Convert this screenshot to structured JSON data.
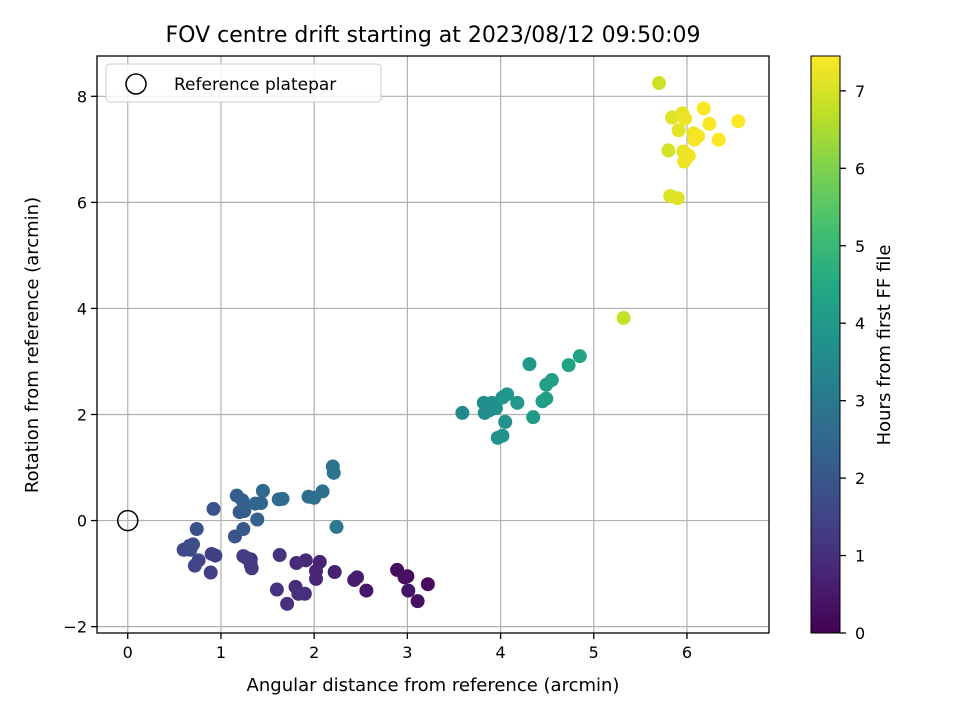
{
  "chart_data": {
    "type": "scatter",
    "title": "FOV centre drift starting at 2023/08/12 09:50:09",
    "xlabel": "Angular distance from reference (arcmin)",
    "ylabel": "Rotation from reference (arcmin)",
    "colorbar_label": "Hours from first FF file",
    "xlim": [
      -0.33,
      6.88
    ],
    "ylim": [
      -2.12,
      8.76
    ],
    "xticks": [
      0,
      1,
      2,
      3,
      4,
      5,
      6
    ],
    "yticks": [
      -2,
      0,
      2,
      4,
      6,
      8
    ],
    "colorbar_ticks": [
      0,
      1,
      2,
      3,
      4,
      5,
      6,
      7
    ],
    "colorbar_range": [
      0,
      7.45
    ],
    "colormap": "viridis",
    "grid": true,
    "legend": {
      "placement": "top-left",
      "entries": [
        "Reference platepar"
      ]
    },
    "reference_point": {
      "x": 0,
      "y": 0,
      "label": "Reference platepar"
    },
    "points": [
      {
        "x": 3.0,
        "y": -1.05,
        "h": 0.15
      },
      {
        "x": 3.22,
        "y": -1.2,
        "h": 0.2
      },
      {
        "x": 2.89,
        "y": -0.93,
        "h": 0.25
      },
      {
        "x": 2.97,
        "y": -1.07,
        "h": 0.3
      },
      {
        "x": 3.11,
        "y": -1.52,
        "h": 0.35
      },
      {
        "x": 3.01,
        "y": -1.32,
        "h": 0.4
      },
      {
        "x": 2.56,
        "y": -1.32,
        "h": 0.5
      },
      {
        "x": 2.43,
        "y": -1.12,
        "h": 0.55
      },
      {
        "x": 2.46,
        "y": -1.07,
        "h": 0.6
      },
      {
        "x": 2.22,
        "y": -0.97,
        "h": 0.65
      },
      {
        "x": 2.06,
        "y": -0.78,
        "h": 0.7
      },
      {
        "x": 2.02,
        "y": -0.95,
        "h": 0.75
      },
      {
        "x": 2.02,
        "y": -1.1,
        "h": 0.8
      },
      {
        "x": 1.91,
        "y": -0.75,
        "h": 0.85
      },
      {
        "x": 1.81,
        "y": -0.8,
        "h": 0.9
      },
      {
        "x": 1.8,
        "y": -1.25,
        "h": 0.95
      },
      {
        "x": 1.83,
        "y": -1.38,
        "h": 1.0
      },
      {
        "x": 1.9,
        "y": -1.38,
        "h": 1.0
      },
      {
        "x": 1.71,
        "y": -1.57,
        "h": 1.05
      },
      {
        "x": 1.6,
        "y": -1.3,
        "h": 1.1
      },
      {
        "x": 1.63,
        "y": -0.65,
        "h": 1.1
      },
      {
        "x": 1.32,
        "y": -0.73,
        "h": 1.15
      },
      {
        "x": 1.33,
        "y": -0.9,
        "h": 1.2
      },
      {
        "x": 1.32,
        "y": -0.83,
        "h": 1.2
      },
      {
        "x": 1.24,
        "y": -0.67,
        "h": 1.25
      },
      {
        "x": 1.27,
        "y": -0.7,
        "h": 1.3
      },
      {
        "x": 0.94,
        "y": -0.66,
        "h": 1.35
      },
      {
        "x": 0.9,
        "y": -0.63,
        "h": 1.4
      },
      {
        "x": 0.89,
        "y": -0.98,
        "h": 1.45
      },
      {
        "x": 0.72,
        "y": -0.85,
        "h": 1.5
      },
      {
        "x": 0.76,
        "y": -0.75,
        "h": 1.55
      },
      {
        "x": 0.6,
        "y": -0.55,
        "h": 1.6
      },
      {
        "x": 0.67,
        "y": -0.55,
        "h": 1.65
      },
      {
        "x": 0.7,
        "y": -0.45,
        "h": 1.7
      },
      {
        "x": 0.66,
        "y": -0.48,
        "h": 1.75
      },
      {
        "x": 0.74,
        "y": -0.16,
        "h": 1.85
      },
      {
        "x": 0.92,
        "y": 0.22,
        "h": 1.95
      },
      {
        "x": 1.15,
        "y": -0.3,
        "h": 2.0
      },
      {
        "x": 1.24,
        "y": -0.16,
        "h": 2.05
      },
      {
        "x": 1.2,
        "y": 0.16,
        "h": 2.1
      },
      {
        "x": 1.25,
        "y": 0.18,
        "h": 2.15
      },
      {
        "x": 1.17,
        "y": 0.47,
        "h": 2.2
      },
      {
        "x": 1.23,
        "y": 0.38,
        "h": 2.25
      },
      {
        "x": 1.25,
        "y": 0.3,
        "h": 2.3
      },
      {
        "x": 1.39,
        "y": 0.02,
        "h": 2.35
      },
      {
        "x": 1.37,
        "y": 0.32,
        "h": 2.4
      },
      {
        "x": 1.43,
        "y": 0.33,
        "h": 2.45
      },
      {
        "x": 1.45,
        "y": 0.56,
        "h": 2.5
      },
      {
        "x": 1.62,
        "y": 0.4,
        "h": 2.55
      },
      {
        "x": 1.66,
        "y": 0.41,
        "h": 2.6
      },
      {
        "x": 1.94,
        "y": 0.45,
        "h": 2.65
      },
      {
        "x": 2.0,
        "y": 0.43,
        "h": 2.7
      },
      {
        "x": 2.09,
        "y": 0.55,
        "h": 2.75
      },
      {
        "x": 2.2,
        "y": 1.02,
        "h": 2.85
      },
      {
        "x": 2.21,
        "y": 0.9,
        "h": 2.9
      },
      {
        "x": 2.24,
        "y": -0.12,
        "h": 3.0
      },
      {
        "x": 3.59,
        "y": 2.03,
        "h": 3.5
      },
      {
        "x": 3.82,
        "y": 2.22,
        "h": 3.55
      },
      {
        "x": 3.83,
        "y": 2.03,
        "h": 3.6
      },
      {
        "x": 3.88,
        "y": 2.08,
        "h": 3.65
      },
      {
        "x": 3.91,
        "y": 2.22,
        "h": 3.7
      },
      {
        "x": 3.95,
        "y": 2.12,
        "h": 3.7
      },
      {
        "x": 3.97,
        "y": 1.56,
        "h": 3.75
      },
      {
        "x": 4.02,
        "y": 1.6,
        "h": 3.8
      },
      {
        "x": 4.05,
        "y": 1.86,
        "h": 3.8
      },
      {
        "x": 4.02,
        "y": 2.32,
        "h": 3.85
      },
      {
        "x": 4.07,
        "y": 2.38,
        "h": 3.9
      },
      {
        "x": 4.18,
        "y": 2.22,
        "h": 3.95
      },
      {
        "x": 4.31,
        "y": 2.95,
        "h": 4.0
      },
      {
        "x": 4.35,
        "y": 1.95,
        "h": 4.05
      },
      {
        "x": 4.45,
        "y": 2.25,
        "h": 4.1
      },
      {
        "x": 4.49,
        "y": 2.3,
        "h": 4.15
      },
      {
        "x": 4.49,
        "y": 2.56,
        "h": 4.2
      },
      {
        "x": 4.55,
        "y": 2.65,
        "h": 4.25
      },
      {
        "x": 4.73,
        "y": 2.93,
        "h": 4.3
      },
      {
        "x": 4.85,
        "y": 3.1,
        "h": 4.35
      },
      {
        "x": 5.32,
        "y": 3.82,
        "h": 6.8
      },
      {
        "x": 5.7,
        "y": 8.25,
        "h": 6.9
      },
      {
        "x": 5.8,
        "y": 6.98,
        "h": 7.0
      },
      {
        "x": 5.82,
        "y": 6.12,
        "h": 7.05
      },
      {
        "x": 5.84,
        "y": 7.6,
        "h": 7.1
      },
      {
        "x": 5.9,
        "y": 6.08,
        "h": 7.1
      },
      {
        "x": 5.91,
        "y": 7.36,
        "h": 7.15
      },
      {
        "x": 5.95,
        "y": 7.68,
        "h": 7.2
      },
      {
        "x": 5.96,
        "y": 6.96,
        "h": 7.2
      },
      {
        "x": 5.97,
        "y": 6.77,
        "h": 7.25
      },
      {
        "x": 5.98,
        "y": 7.58,
        "h": 7.25
      },
      {
        "x": 6.02,
        "y": 6.88,
        "h": 7.3
      },
      {
        "x": 6.07,
        "y": 7.3,
        "h": 7.3
      },
      {
        "x": 6.08,
        "y": 7.18,
        "h": 7.35
      },
      {
        "x": 6.12,
        "y": 7.25,
        "h": 7.35
      },
      {
        "x": 6.18,
        "y": 7.77,
        "h": 7.4
      },
      {
        "x": 6.24,
        "y": 7.48,
        "h": 7.4
      },
      {
        "x": 6.34,
        "y": 7.18,
        "h": 7.45
      },
      {
        "x": 6.55,
        "y": 7.53,
        "h": 7.45
      }
    ]
  }
}
